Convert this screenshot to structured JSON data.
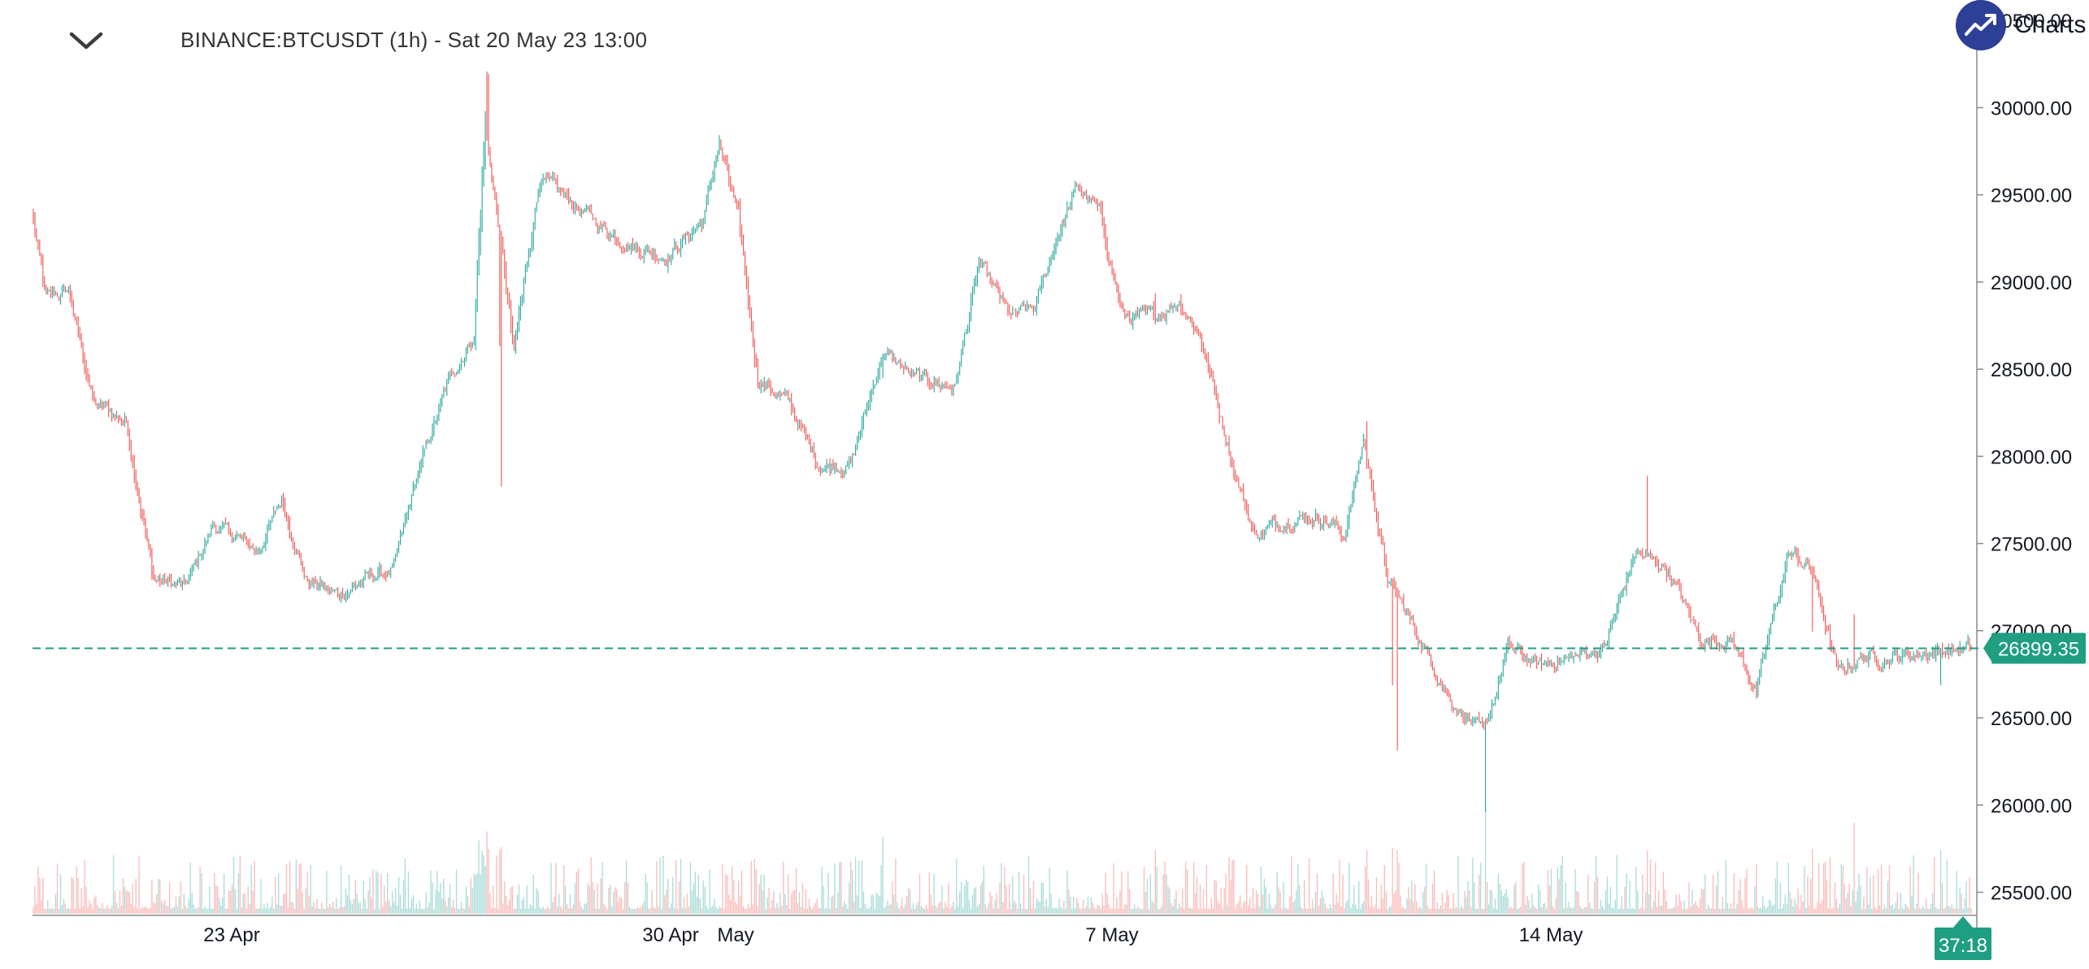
{
  "header": {
    "title": "BINANCE:BTCUSDT (1h) - Sat 20 May 23 13:00"
  },
  "brand": {
    "text": "Charts p",
    "logo_color": "#2d3f97"
  },
  "colors": {
    "up": "#26a69a",
    "down": "#ef5350",
    "price_line": "#1f9e82",
    "axis_text": "#131722",
    "axis_line": "#8a8a8a"
  },
  "chart_data": {
    "type": "candlestick",
    "symbol": "BINANCE:BTCUSDT",
    "interval": "1h",
    "ylim": [
      25400,
      30550
    ],
    "y_ticks": [
      {
        "value": 30500,
        "label": "30500.00"
      },
      {
        "value": 30000,
        "label": "30000.00"
      },
      {
        "value": 29500,
        "label": "29500.00"
      },
      {
        "value": 29000,
        "label": "29000.00"
      },
      {
        "value": 28500,
        "label": "28500.00"
      },
      {
        "value": 28000,
        "label": "28000.00"
      },
      {
        "value": 27500,
        "label": "27500.00"
      },
      {
        "value": 27000,
        "label": "27000.00"
      },
      {
        "value": 26500,
        "label": "26500.00"
      },
      {
        "value": 26000,
        "label": "26000.00"
      },
      {
        "value": 25500,
        "label": "25500.00"
      }
    ],
    "x_ticks": [
      {
        "label": "23 Apr"
      },
      {
        "label": "30 Apr"
      },
      {
        "label": "May"
      },
      {
        "label": "7 May"
      },
      {
        "label": "14 May"
      }
    ],
    "last_price": {
      "value": 26899.35,
      "label": "26899.35"
    },
    "countdown": "37:18",
    "anchors": [
      [
        0,
        29350
      ],
      [
        8,
        28900
      ],
      [
        22,
        28950
      ],
      [
        38,
        28300
      ],
      [
        58,
        28200
      ],
      [
        75,
        27300
      ],
      [
        95,
        27250
      ],
      [
        112,
        27600
      ],
      [
        125,
        27550
      ],
      [
        140,
        27450
      ],
      [
        155,
        27750
      ],
      [
        170,
        27300
      ],
      [
        190,
        27200
      ],
      [
        208,
        27300
      ],
      [
        225,
        27350
      ],
      [
        240,
        27900
      ],
      [
        260,
        28450
      ],
      [
        275,
        28700
      ],
      [
        282,
        29900
      ],
      [
        292,
        29200
      ],
      [
        300,
        28600
      ],
      [
        316,
        29600
      ],
      [
        330,
        29500
      ],
      [
        350,
        29350
      ],
      [
        375,
        29200
      ],
      [
        395,
        29150
      ],
      [
        418,
        29350
      ],
      [
        428,
        29800
      ],
      [
        440,
        29350
      ],
      [
        452,
        28450
      ],
      [
        472,
        28300
      ],
      [
        490,
        27950
      ],
      [
        510,
        27950
      ],
      [
        530,
        28600
      ],
      [
        550,
        28450
      ],
      [
        575,
        28400
      ],
      [
        590,
        29100
      ],
      [
        610,
        28800
      ],
      [
        625,
        28850
      ],
      [
        640,
        29300
      ],
      [
        652,
        29550
      ],
      [
        665,
        29400
      ],
      [
        680,
        28800
      ],
      [
        700,
        28800
      ],
      [
        715,
        28900
      ],
      [
        728,
        28700
      ],
      [
        750,
        27900
      ],
      [
        762,
        27550
      ],
      [
        785,
        27650
      ],
      [
        805,
        27650
      ],
      [
        818,
        27550
      ],
      [
        830,
        28100
      ],
      [
        845,
        27300
      ],
      [
        868,
        26900
      ],
      [
        885,
        26600
      ],
      [
        905,
        26400
      ],
      [
        920,
        26900
      ],
      [
        940,
        26800
      ],
      [
        960,
        26850
      ],
      [
        980,
        26900
      ],
      [
        1000,
        27450
      ],
      [
        1020,
        27350
      ],
      [
        1040,
        26950
      ],
      [
        1060,
        26950
      ],
      [
        1075,
        26650
      ],
      [
        1095,
        27450
      ],
      [
        1110,
        27350
      ],
      [
        1126,
        26750
      ],
      [
        1140,
        26850
      ],
      [
        1160,
        26850
      ],
      [
        1185,
        26880
      ],
      [
        1208,
        26900
      ]
    ]
  }
}
